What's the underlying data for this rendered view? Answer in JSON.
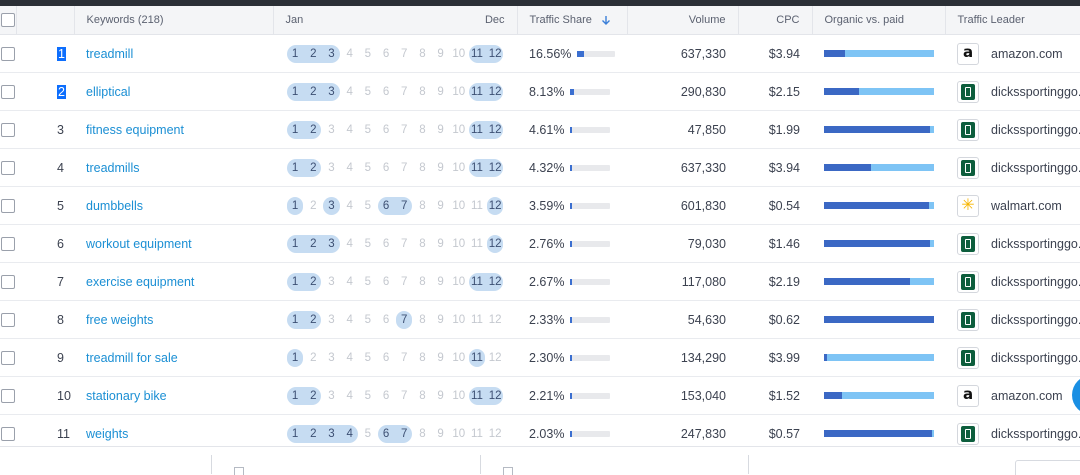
{
  "header": {
    "keywords_label": "Keywords (218)",
    "jan_label": "Jan",
    "dec_label": "Dec",
    "traffic_share_label": "Traffic Share",
    "volume_label": "Volume",
    "cpc_label": "CPC",
    "organic_paid_label": "Organic vs. paid",
    "traffic_leader_label": "Traffic Leader"
  },
  "month_numbers": [
    "1",
    "2",
    "3",
    "4",
    "5",
    "6",
    "7",
    "8",
    "9",
    "10",
    "11",
    "12"
  ],
  "colors": {
    "link": "#1b8fd4",
    "pill": "#c6dcf2",
    "organic": "#3b68c4",
    "paid": "#7ec4f5",
    "selected": "#0d6efd"
  },
  "rows": [
    {
      "rank": "1",
      "keyword": "treadmill",
      "months": [
        1,
        2,
        3,
        11,
        12
      ],
      "share": "16.56%",
      "share_value": 16.56,
      "volume": "637,330",
      "cpc": "$3.94",
      "organic_fraction": 0.19,
      "leader": "amazon.com",
      "logo": "amazon-logo-icon",
      "selected": true
    },
    {
      "rank": "2",
      "keyword": "elliptical",
      "months": [
        1,
        2,
        3,
        11,
        12
      ],
      "share": "8.13%",
      "share_value": 8.13,
      "volume": "290,830",
      "cpc": "$2.15",
      "organic_fraction": 0.32,
      "leader": "dickssportinggo...",
      "logo": "dicks-logo-icon",
      "selected": true
    },
    {
      "rank": "3",
      "keyword": "fitness equipment",
      "months": [
        1,
        2,
        11,
        12
      ],
      "share": "4.61%",
      "share_value": 4.61,
      "volume": "47,850",
      "cpc": "$1.99",
      "organic_fraction": 0.96,
      "leader": "dickssportinggo...",
      "logo": "dicks-logo-icon",
      "selected": false
    },
    {
      "rank": "4",
      "keyword": "treadmills",
      "months": [
        1,
        2,
        11,
        12
      ],
      "share": "4.32%",
      "share_value": 4.32,
      "volume": "637,330",
      "cpc": "$3.94",
      "organic_fraction": 0.43,
      "leader": "dickssportinggo...",
      "logo": "dicks-logo-icon",
      "selected": false
    },
    {
      "rank": "5",
      "keyword": "dumbbells",
      "months": [
        1,
        3,
        6,
        7,
        12
      ],
      "share": "3.59%",
      "share_value": 3.59,
      "volume": "601,830",
      "cpc": "$0.54",
      "organic_fraction": 0.95,
      "leader": "walmart.com",
      "logo": "walmart-logo-icon",
      "selected": false
    },
    {
      "rank": "6",
      "keyword": "workout equipment",
      "months": [
        1,
        2,
        3,
        12
      ],
      "share": "2.76%",
      "share_value": 2.76,
      "volume": "79,030",
      "cpc": "$1.46",
      "organic_fraction": 0.96,
      "leader": "dickssportinggo...",
      "logo": "dicks-logo-icon",
      "selected": false
    },
    {
      "rank": "7",
      "keyword": "exercise equipment",
      "months": [
        1,
        2,
        11,
        12
      ],
      "share": "2.67%",
      "share_value": 2.67,
      "volume": "117,080",
      "cpc": "$2.19",
      "organic_fraction": 0.78,
      "leader": "dickssportinggo...",
      "logo": "dicks-logo-icon",
      "selected": false
    },
    {
      "rank": "8",
      "keyword": "free weights",
      "months": [
        1,
        2,
        7
      ],
      "share": "2.33%",
      "share_value": 2.33,
      "volume": "54,630",
      "cpc": "$0.62",
      "organic_fraction": 1.0,
      "leader": "dickssportinggo...",
      "logo": "dicks-logo-icon",
      "selected": false
    },
    {
      "rank": "9",
      "keyword": "treadmill for sale",
      "months": [
        1,
        11
      ],
      "share": "2.30%",
      "share_value": 2.3,
      "volume": "134,290",
      "cpc": "$3.99",
      "organic_fraction": 0.03,
      "leader": "dickssportinggo...",
      "logo": "dicks-logo-icon",
      "selected": false
    },
    {
      "rank": "10",
      "keyword": "stationary bike",
      "months": [
        1,
        2,
        11,
        12
      ],
      "share": "2.21%",
      "share_value": 2.21,
      "volume": "153,040",
      "cpc": "$1.52",
      "organic_fraction": 0.16,
      "leader": "amazon.com",
      "logo": "amazon-logo-icon",
      "selected": false
    },
    {
      "rank": "11",
      "keyword": "weights",
      "months": [
        1,
        2,
        3,
        4,
        6,
        7
      ],
      "share": "2.03%",
      "share_value": 2.03,
      "volume": "247,830",
      "cpc": "$0.57",
      "organic_fraction": 0.98,
      "leader": "dickssportinggo...",
      "logo": "dicks-logo-icon",
      "selected": false
    }
  ]
}
